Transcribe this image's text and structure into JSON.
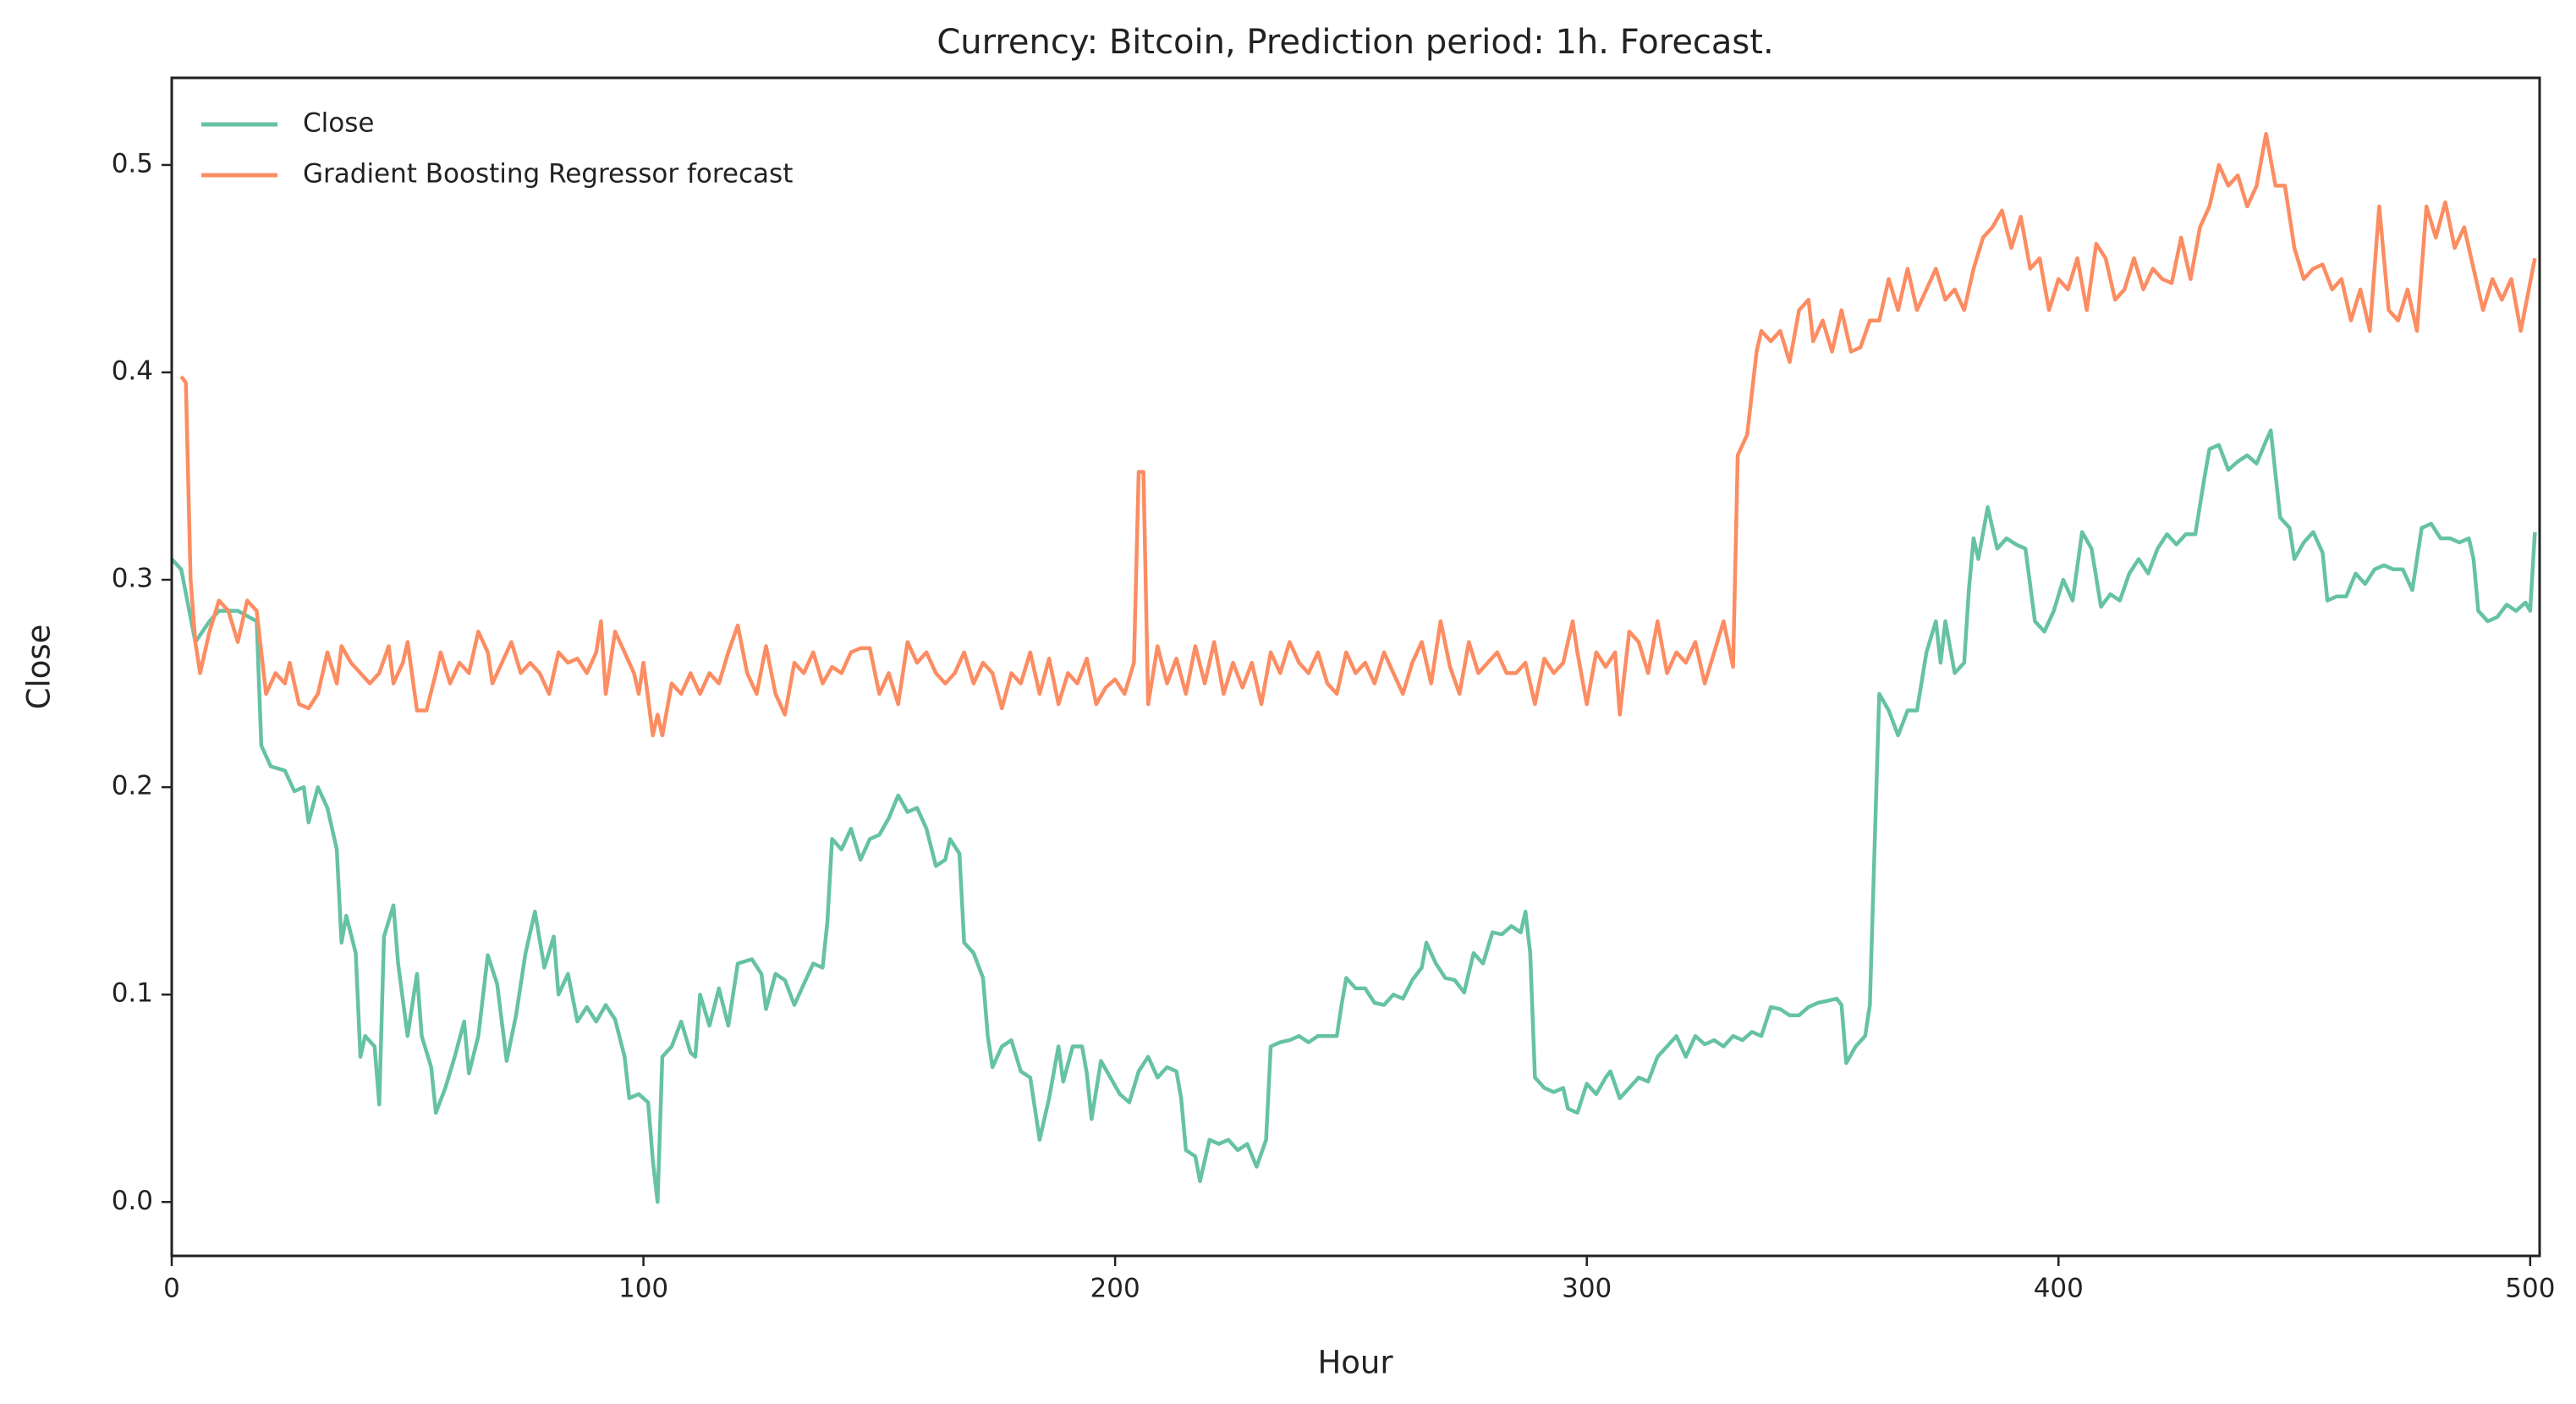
{
  "chart_data": {
    "type": "line",
    "title": "Currency: Bitcoin, Prediction period: 1h. Forecast.",
    "x_label": "Hour",
    "y_label": "Close",
    "xlim": [
      0,
      502
    ],
    "ylim": [
      -0.026,
      0.542
    ],
    "xticks": [
      0,
      100,
      200,
      300,
      400,
      500
    ],
    "yticks": [
      {
        "value": 0,
        "label": "0.0"
      },
      0.1,
      0.2,
      0.3,
      0.4,
      0.5
    ],
    "grid": false,
    "legend": "upper left",
    "series": [
      {
        "name": "Close",
        "color": "#66c2a5",
        "x": [
          0,
          2,
          5,
          8,
          10,
          14,
          18,
          19,
          21,
          24,
          26,
          28,
          29,
          31,
          33,
          35,
          36,
          37,
          39,
          40,
          41,
          43,
          44,
          45,
          47,
          48,
          50,
          52,
          53,
          55,
          56,
          58,
          60,
          62,
          63,
          65,
          67,
          69,
          71,
          73,
          75,
          77,
          79,
          81,
          82,
          84,
          86,
          88,
          90,
          92,
          94,
          96,
          97,
          99,
          101,
          102,
          103,
          104,
          106,
          108,
          110,
          111,
          112,
          114,
          116,
          118,
          120,
          123,
          125,
          126,
          128,
          130,
          132,
          134,
          136,
          138,
          139,
          140,
          142,
          144,
          146,
          148,
          150,
          152,
          154,
          156,
          158,
          160,
          162,
          164,
          165,
          167,
          168,
          170,
          172,
          173,
          174,
          176,
          178,
          180,
          182,
          184,
          186,
          188,
          189,
          191,
          193,
          194,
          195,
          197,
          199,
          201,
          203,
          205,
          207,
          209,
          211,
          213,
          214,
          215,
          217,
          218,
          220,
          222,
          224,
          226,
          228,
          230,
          232,
          233,
          235,
          237,
          239,
          241,
          243,
          245,
          247,
          248,
          249,
          251,
          253,
          255,
          257,
          259,
          261,
          263,
          265,
          266,
          268,
          270,
          272,
          274,
          276,
          278,
          280,
          282,
          284,
          286,
          287,
          288,
          289,
          291,
          293,
          295,
          296,
          298,
          300,
          302,
          304,
          305,
          307,
          309,
          311,
          313,
          315,
          317,
          319,
          321,
          323,
          325,
          327,
          329,
          331,
          333,
          335,
          337,
          339,
          341,
          343,
          345,
          347,
          349,
          351,
          353,
          354,
          355,
          357,
          359,
          360,
          361,
          362,
          364,
          366,
          368,
          370,
          372,
          374,
          375,
          376,
          378,
          380,
          381,
          382,
          383,
          385,
          387,
          389,
          391,
          393,
          395,
          397,
          399,
          401,
          403,
          405,
          407,
          409,
          411,
          413,
          415,
          417,
          419,
          421,
          423,
          425,
          427,
          429,
          431,
          432,
          434,
          436,
          438,
          440,
          442,
          444,
          445,
          447,
          449,
          450,
          452,
          454,
          456,
          457,
          459,
          461,
          463,
          465,
          467,
          469,
          471,
          473,
          475,
          477,
          479,
          481,
          483,
          485,
          487,
          488,
          489,
          491,
          493,
          495,
          497,
          499,
          500,
          501
        ],
        "values": [
          0.31,
          0.305,
          0.27,
          0.28,
          0.285,
          0.285,
          0.28,
          0.22,
          0.21,
          0.208,
          0.198,
          0.2,
          0.183,
          0.2,
          0.19,
          0.17,
          0.125,
          0.138,
          0.12,
          0.07,
          0.08,
          0.075,
          0.047,
          0.128,
          0.143,
          0.115,
          0.08,
          0.11,
          0.08,
          0.065,
          0.043,
          0.055,
          0.07,
          0.087,
          0.062,
          0.08,
          0.119,
          0.105,
          0.068,
          0.09,
          0.12,
          0.14,
          0.113,
          0.128,
          0.1,
          0.11,
          0.087,
          0.094,
          0.087,
          0.095,
          0.088,
          0.07,
          0.05,
          0.052,
          0.048,
          0.02,
          0.0,
          0.07,
          0.075,
          0.087,
          0.072,
          0.07,
          0.1,
          0.085,
          0.103,
          0.085,
          0.115,
          0.117,
          0.11,
          0.093,
          0.11,
          0.107,
          0.095,
          0.105,
          0.115,
          0.113,
          0.135,
          0.175,
          0.17,
          0.18,
          0.165,
          0.175,
          0.177,
          0.185,
          0.196,
          0.188,
          0.19,
          0.18,
          0.162,
          0.165,
          0.175,
          0.168,
          0.125,
          0.12,
          0.108,
          0.08,
          0.065,
          0.075,
          0.078,
          0.063,
          0.06,
          0.03,
          0.05,
          0.075,
          0.058,
          0.075,
          0.075,
          0.062,
          0.04,
          0.068,
          0.06,
          0.052,
          0.048,
          0.063,
          0.07,
          0.06,
          0.065,
          0.063,
          0.05,
          0.025,
          0.022,
          0.01,
          0.03,
          0.028,
          0.03,
          0.025,
          0.028,
          0.017,
          0.03,
          0.075,
          0.077,
          0.078,
          0.08,
          0.077,
          0.08,
          0.08,
          0.08,
          0.095,
          0.108,
          0.103,
          0.103,
          0.096,
          0.095,
          0.1,
          0.098,
          0.107,
          0.113,
          0.125,
          0.115,
          0.108,
          0.107,
          0.101,
          0.12,
          0.115,
          0.13,
          0.129,
          0.133,
          0.13,
          0.14,
          0.12,
          0.06,
          0.055,
          0.053,
          0.055,
          0.045,
          0.043,
          0.057,
          0.052,
          0.06,
          0.063,
          0.05,
          0.055,
          0.06,
          0.058,
          0.07,
          0.075,
          0.08,
          0.07,
          0.08,
          0.076,
          0.078,
          0.075,
          0.08,
          0.078,
          0.082,
          0.08,
          0.094,
          0.093,
          0.09,
          0.09,
          0.094,
          0.096,
          0.097,
          0.098,
          0.095,
          0.067,
          0.075,
          0.08,
          0.095,
          0.17,
          0.245,
          0.237,
          0.225,
          0.237,
          0.237,
          0.265,
          0.28,
          0.26,
          0.28,
          0.255,
          0.26,
          0.295,
          0.32,
          0.31,
          0.335,
          0.315,
          0.32,
          0.317,
          0.315,
          0.28,
          0.275,
          0.285,
          0.3,
          0.29,
          0.323,
          0.315,
          0.287,
          0.293,
          0.29,
          0.303,
          0.31,
          0.303,
          0.315,
          0.322,
          0.317,
          0.322,
          0.322,
          0.35,
          0.363,
          0.365,
          0.353,
          0.357,
          0.36,
          0.356,
          0.367,
          0.372,
          0.33,
          0.325,
          0.31,
          0.318,
          0.323,
          0.313,
          0.29,
          0.292,
          0.292,
          0.303,
          0.298,
          0.305,
          0.307,
          0.305,
          0.305,
          0.295,
          0.325,
          0.327,
          0.32,
          0.32,
          0.318,
          0.32,
          0.31,
          0.285,
          0.28,
          0.282,
          0.288,
          0.285,
          0.289,
          0.285,
          0.323
        ]
      },
      {
        "name": "Gradient Boosting Regressor forecast",
        "color": "#fc8d62",
        "x": [
          2,
          3,
          4,
          5,
          6,
          8,
          10,
          12,
          14,
          16,
          18,
          19,
          20,
          22,
          24,
          25,
          27,
          29,
          31,
          33,
          35,
          36,
          38,
          40,
          42,
          44,
          46,
          47,
          49,
          50,
          52,
          54,
          56,
          57,
          59,
          61,
          63,
          65,
          67,
          68,
          70,
          72,
          74,
          76,
          78,
          80,
          82,
          84,
          86,
          88,
          90,
          91,
          92,
          94,
          96,
          98,
          99,
          100,
          102,
          103,
          104,
          106,
          108,
          110,
          112,
          114,
          116,
          118,
          120,
          122,
          124,
          126,
          128,
          130,
          132,
          134,
          136,
          138,
          140,
          142,
          144,
          146,
          148,
          150,
          152,
          154,
          156,
          158,
          160,
          162,
          164,
          166,
          168,
          170,
          172,
          174,
          176,
          178,
          180,
          182,
          184,
          186,
          188,
          190,
          192,
          194,
          196,
          198,
          200,
          202,
          204,
          205,
          206,
          207,
          209,
          211,
          213,
          215,
          217,
          219,
          221,
          223,
          225,
          227,
          229,
          231,
          233,
          235,
          237,
          239,
          241,
          243,
          245,
          247,
          249,
          251,
          253,
          255,
          257,
          259,
          261,
          263,
          265,
          267,
          269,
          271,
          273,
          275,
          277,
          279,
          281,
          283,
          285,
          287,
          289,
          291,
          293,
          295,
          297,
          298,
          300,
          302,
          304,
          306,
          307,
          309,
          311,
          313,
          315,
          317,
          319,
          321,
          323,
          325,
          327,
          329,
          331,
          332,
          334,
          336,
          337,
          339,
          341,
          343,
          345,
          347,
          348,
          350,
          352,
          354,
          356,
          358,
          360,
          362,
          364,
          366,
          368,
          370,
          372,
          374,
          376,
          378,
          380,
          382,
          384,
          386,
          388,
          390,
          392,
          394,
          396,
          398,
          400,
          402,
          404,
          406,
          408,
          410,
          412,
          414,
          416,
          418,
          420,
          422,
          424,
          426,
          428,
          430,
          432,
          434,
          436,
          438,
          440,
          442,
          444,
          446,
          448,
          450,
          452,
          454,
          456,
          458,
          460,
          462,
          464,
          466,
          468,
          470,
          472,
          474,
          476,
          478,
          480,
          482,
          484,
          486,
          488,
          490,
          492,
          494,
          496,
          498,
          501
        ],
        "values": [
          0.398,
          0.395,
          0.3,
          0.27,
          0.255,
          0.275,
          0.29,
          0.285,
          0.27,
          0.29,
          0.285,
          0.265,
          0.245,
          0.255,
          0.25,
          0.26,
          0.24,
          0.238,
          0.245,
          0.265,
          0.25,
          0.268,
          0.26,
          0.255,
          0.25,
          0.255,
          0.268,
          0.25,
          0.26,
          0.27,
          0.237,
          0.237,
          0.255,
          0.265,
          0.25,
          0.26,
          0.255,
          0.275,
          0.265,
          0.25,
          0.26,
          0.27,
          0.255,
          0.26,
          0.255,
          0.245,
          0.265,
          0.26,
          0.262,
          0.255,
          0.265,
          0.28,
          0.245,
          0.275,
          0.265,
          0.255,
          0.245,
          0.26,
          0.225,
          0.235,
          0.225,
          0.25,
          0.245,
          0.255,
          0.245,
          0.255,
          0.25,
          0.265,
          0.278,
          0.255,
          0.245,
          0.268,
          0.245,
          0.235,
          0.26,
          0.255,
          0.265,
          0.25,
          0.258,
          0.255,
          0.265,
          0.267,
          0.267,
          0.245,
          0.255,
          0.24,
          0.27,
          0.26,
          0.265,
          0.255,
          0.25,
          0.255,
          0.265,
          0.25,
          0.26,
          0.255,
          0.238,
          0.255,
          0.25,
          0.265,
          0.245,
          0.262,
          0.24,
          0.255,
          0.25,
          0.262,
          0.24,
          0.248,
          0.252,
          0.245,
          0.26,
          0.352,
          0.352,
          0.24,
          0.268,
          0.25,
          0.262,
          0.245,
          0.268,
          0.25,
          0.27,
          0.245,
          0.26,
          0.248,
          0.26,
          0.24,
          0.265,
          0.255,
          0.27,
          0.26,
          0.255,
          0.265,
          0.25,
          0.245,
          0.265,
          0.255,
          0.26,
          0.25,
          0.265,
          0.255,
          0.245,
          0.26,
          0.27,
          0.25,
          0.28,
          0.258,
          0.245,
          0.27,
          0.255,
          0.26,
          0.265,
          0.255,
          0.255,
          0.26,
          0.24,
          0.262,
          0.255,
          0.26,
          0.28,
          0.265,
          0.24,
          0.265,
          0.258,
          0.265,
          0.235,
          0.275,
          0.27,
          0.255,
          0.28,
          0.255,
          0.265,
          0.26,
          0.27,
          0.25,
          0.265,
          0.28,
          0.258,
          0.36,
          0.37,
          0.41,
          0.42,
          0.415,
          0.42,
          0.405,
          0.43,
          0.435,
          0.415,
          0.425,
          0.41,
          0.43,
          0.41,
          0.412,
          0.425,
          0.425,
          0.445,
          0.43,
          0.45,
          0.43,
          0.44,
          0.45,
          0.435,
          0.44,
          0.43,
          0.45,
          0.465,
          0.47,
          0.478,
          0.46,
          0.475,
          0.45,
          0.455,
          0.43,
          0.445,
          0.44,
          0.455,
          0.43,
          0.462,
          0.455,
          0.435,
          0.44,
          0.455,
          0.44,
          0.45,
          0.445,
          0.443,
          0.465,
          0.445,
          0.47,
          0.48,
          0.5,
          0.49,
          0.495,
          0.48,
          0.49,
          0.515,
          0.49,
          0.49,
          0.46,
          0.445,
          0.45,
          0.452,
          0.44,
          0.445,
          0.425,
          0.44,
          0.42,
          0.48,
          0.43,
          0.425,
          0.44,
          0.42,
          0.48,
          0.465,
          0.482,
          0.46,
          0.47,
          0.45,
          0.43,
          0.445,
          0.435,
          0.445,
          0.42,
          0.455
        ]
      }
    ]
  }
}
